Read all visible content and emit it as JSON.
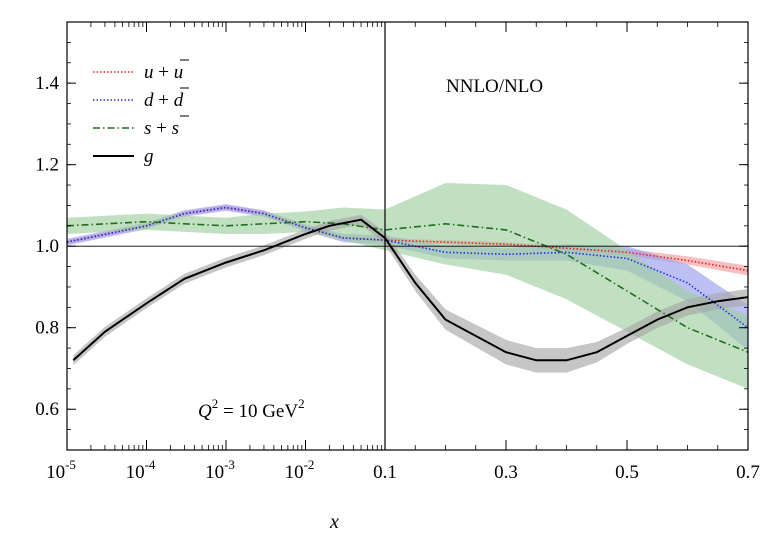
{
  "chart_data": {
    "type": "line",
    "title": "NNLO/NLO",
    "annotation": {
      "q": "Q",
      "q_exp": "2",
      "eq": " = 10 GeV",
      "unit_exp": "2"
    },
    "xlabel": "x",
    "ylabel": "",
    "ylim": [
      0.5,
      1.55
    ],
    "yticks": [
      0.6,
      0.8,
      1.0,
      1.2,
      1.4
    ],
    "ytick_labels": [
      "0.6",
      "0.8",
      "1.0",
      "1.2",
      "1.4"
    ],
    "x_left_panel": {
      "scale": "log",
      "range": [
        1e-05,
        0.1
      ],
      "tick_labels": [
        {
          "base": "10",
          "exp": "-5"
        },
        {
          "base": "10",
          "exp": "-4"
        },
        {
          "base": "10",
          "exp": "-3"
        },
        {
          "base": "10",
          "exp": "-2"
        }
      ]
    },
    "x_right_panel": {
      "scale": "linear",
      "range": [
        0.1,
        0.7
      ],
      "ticks": [
        0.1,
        0.3,
        0.5,
        0.7
      ],
      "tick_labels": [
        "0.1",
        "0.3",
        "0.5",
        "0.7"
      ]
    },
    "reference_line": 1.0,
    "legend_position": "top-left",
    "series": [
      {
        "name": "u + ū",
        "name_parts": [
          "u",
          " + ",
          "u"
        ],
        "color": "#e8212a",
        "style": "dotted",
        "band_color": "#f29c9c",
        "x": [
          1e-05,
          0.0001,
          0.0003,
          0.001,
          0.003,
          0.01,
          0.03,
          0.1,
          0.2,
          0.3,
          0.4,
          0.5,
          0.6,
          0.7
        ],
        "y": [
          1.01,
          1.05,
          1.08,
          1.095,
          1.08,
          1.045,
          1.02,
          1.015,
          1.01,
          1.005,
          0.995,
          0.985,
          0.965,
          0.94
        ],
        "band": [
          0.005,
          0.005,
          0.005,
          0.006,
          0.006,
          0.006,
          0.006,
          0.005,
          0.005,
          0.005,
          0.006,
          0.008,
          0.01,
          0.012
        ]
      },
      {
        "name": "d + d̄",
        "name_parts": [
          "d",
          " + ",
          "d"
        ],
        "color": "#1f35d6",
        "style": "dotted",
        "band_color": "#9a9ef0",
        "x": [
          1e-05,
          0.0001,
          0.0003,
          0.001,
          0.003,
          0.01,
          0.03,
          0.1,
          0.2,
          0.3,
          0.4,
          0.5,
          0.6,
          0.7
        ],
        "y": [
          1.01,
          1.05,
          1.08,
          1.095,
          1.08,
          1.045,
          1.02,
          1.015,
          0.985,
          0.98,
          0.985,
          0.97,
          0.91,
          0.8
        ],
        "band": [
          0.008,
          0.008,
          0.008,
          0.008,
          0.008,
          0.008,
          0.01,
          0.012,
          0.015,
          0.015,
          0.02,
          0.03,
          0.045,
          0.055
        ]
      },
      {
        "name": "s + s̄",
        "name_parts": [
          "s",
          " + ",
          "s"
        ],
        "color": "#1e6f1e",
        "style": "dashdot",
        "band_color": "#9fcf9f",
        "x": [
          1e-05,
          0.0001,
          0.0003,
          0.001,
          0.003,
          0.01,
          0.03,
          0.1,
          0.2,
          0.3,
          0.4,
          0.5,
          0.6,
          0.7
        ],
        "y": [
          1.05,
          1.06,
          1.055,
          1.05,
          1.055,
          1.06,
          1.055,
          1.04,
          1.055,
          1.04,
          0.98,
          0.89,
          0.8,
          0.74
        ],
        "band": [
          0.02,
          0.02,
          0.02,
          0.02,
          0.025,
          0.025,
          0.04,
          0.05,
          0.1,
          0.11,
          0.11,
          0.1,
          0.09,
          0.09
        ]
      },
      {
        "name": "g",
        "name_parts": [
          "g",
          "",
          ""
        ],
        "color": "#000000",
        "style": "solid",
        "band_color": "#a8a8a8",
        "x": [
          1.2e-05,
          3e-05,
          0.0001,
          0.0003,
          0.001,
          0.003,
          0.01,
          0.02,
          0.05,
          0.1,
          0.15,
          0.2,
          0.3,
          0.35,
          0.4,
          0.45,
          0.5,
          0.55,
          0.6,
          0.65,
          0.7
        ],
        "y": [
          0.72,
          0.79,
          0.86,
          0.92,
          0.96,
          0.99,
          1.03,
          1.05,
          1.065,
          1.02,
          0.91,
          0.82,
          0.74,
          0.72,
          0.72,
          0.74,
          0.78,
          0.82,
          0.85,
          0.865,
          0.875
        ],
        "band": [
          0.012,
          0.012,
          0.012,
          0.012,
          0.012,
          0.012,
          0.012,
          0.012,
          0.012,
          0.015,
          0.02,
          0.025,
          0.03,
          0.03,
          0.03,
          0.025,
          0.02,
          0.02,
          0.02,
          0.02,
          0.02
        ]
      }
    ]
  }
}
